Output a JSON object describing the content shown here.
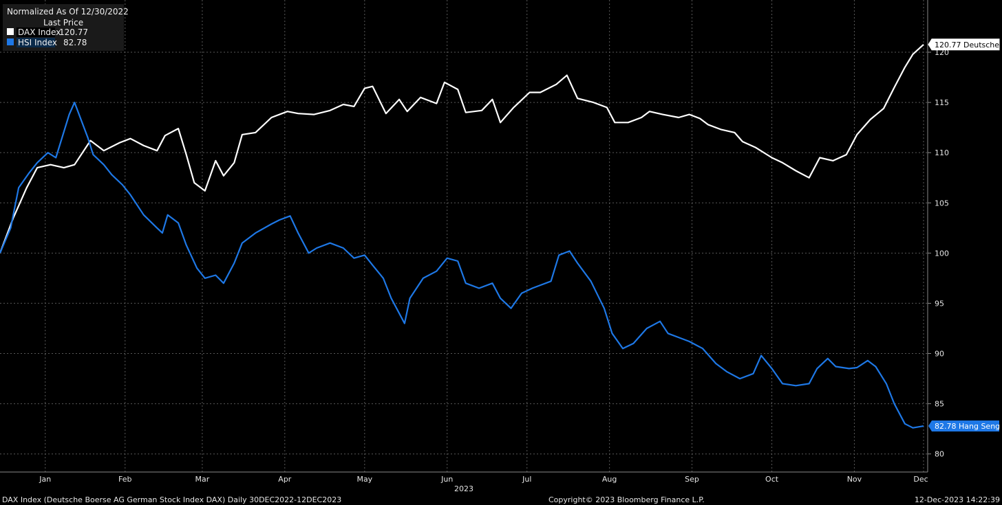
{
  "chart_data": {
    "type": "line",
    "header": "Normalized As Of 12/30/2022",
    "legend_title": "Last Price",
    "legend_placement": "top-left",
    "grid": true,
    "ylim": [
      78.2,
      125.2
    ],
    "y_ticks": [
      80,
      85,
      90,
      95,
      100,
      105,
      110,
      115,
      120
    ],
    "x_range": [
      "2022-12-30",
      "2023-12-12"
    ],
    "x_ticks": [
      {
        "label": "Jan",
        "date": "2023-01-16"
      },
      {
        "label": "Feb",
        "date": "2023-02-15"
      },
      {
        "label": "Mar",
        "date": "2023-03-16"
      },
      {
        "label": "Apr",
        "date": "2023-04-16"
      },
      {
        "label": "May",
        "date": "2023-05-16"
      },
      {
        "label": "Jun",
        "date": "2023-06-16"
      },
      {
        "label": "Jul",
        "date": "2023-07-16"
      },
      {
        "label": "Aug",
        "date": "2023-08-16"
      },
      {
        "label": "Sep",
        "date": "2023-09-16"
      },
      {
        "label": "Oct",
        "date": "2023-10-16"
      },
      {
        "label": "Nov",
        "date": "2023-11-16"
      },
      {
        "label": "Dec",
        "date": "2023-12-12"
      }
    ],
    "year_label": "2023",
    "series": [
      {
        "name": "DAX Index",
        "legend_value": "120.77",
        "end_label": "120.77 Deutsche",
        "color": "#ffffff",
        "points": [
          [
            "2022-12-30",
            100.0
          ],
          [
            "2023-01-04",
            103.5
          ],
          [
            "2023-01-09",
            106.5
          ],
          [
            "2023-01-13",
            108.5
          ],
          [
            "2023-01-18",
            108.8
          ],
          [
            "2023-01-23",
            108.5
          ],
          [
            "2023-01-27",
            108.8
          ],
          [
            "2023-02-02",
            111.2
          ],
          [
            "2023-02-07",
            110.2
          ],
          [
            "2023-02-13",
            111.0
          ],
          [
            "2023-02-17",
            111.4
          ],
          [
            "2023-02-22",
            110.7
          ],
          [
            "2023-02-27",
            110.2
          ],
          [
            "2023-03-02",
            111.7
          ],
          [
            "2023-03-07",
            112.4
          ],
          [
            "2023-03-10",
            109.8
          ],
          [
            "2023-03-13",
            107.0
          ],
          [
            "2023-03-17",
            106.2
          ],
          [
            "2023-03-21",
            109.2
          ],
          [
            "2023-03-24",
            107.7
          ],
          [
            "2023-03-28",
            109.0
          ],
          [
            "2023-03-31",
            111.8
          ],
          [
            "2023-04-05",
            112.0
          ],
          [
            "2023-04-11",
            113.5
          ],
          [
            "2023-04-17",
            114.1
          ],
          [
            "2023-04-21",
            113.9
          ],
          [
            "2023-04-27",
            113.8
          ],
          [
            "2023-05-03",
            114.2
          ],
          [
            "2023-05-08",
            114.8
          ],
          [
            "2023-05-12",
            114.6
          ],
          [
            "2023-05-16",
            116.4
          ],
          [
            "2023-05-19",
            116.6
          ],
          [
            "2023-05-24",
            113.9
          ],
          [
            "2023-05-29",
            115.3
          ],
          [
            "2023-06-01",
            114.1
          ],
          [
            "2023-06-06",
            115.5
          ],
          [
            "2023-06-12",
            114.9
          ],
          [
            "2023-06-15",
            117.0
          ],
          [
            "2023-06-20",
            116.3
          ],
          [
            "2023-06-23",
            114.0
          ],
          [
            "2023-06-29",
            114.2
          ],
          [
            "2023-07-03",
            115.3
          ],
          [
            "2023-07-06",
            113.0
          ],
          [
            "2023-07-11",
            114.5
          ],
          [
            "2023-07-17",
            116.0
          ],
          [
            "2023-07-21",
            116.0
          ],
          [
            "2023-07-27",
            116.8
          ],
          [
            "2023-07-31",
            117.7
          ],
          [
            "2023-08-04",
            115.4
          ],
          [
            "2023-08-10",
            115.0
          ],
          [
            "2023-08-15",
            114.5
          ],
          [
            "2023-08-18",
            113.0
          ],
          [
            "2023-08-23",
            113.0
          ],
          [
            "2023-08-28",
            113.5
          ],
          [
            "2023-08-31",
            114.1
          ],
          [
            "2023-09-05",
            113.8
          ],
          [
            "2023-09-11",
            113.5
          ],
          [
            "2023-09-15",
            113.8
          ],
          [
            "2023-09-19",
            113.4
          ],
          [
            "2023-09-22",
            112.8
          ],
          [
            "2023-09-27",
            112.3
          ],
          [
            "2023-10-02",
            112.0
          ],
          [
            "2023-10-05",
            111.1
          ],
          [
            "2023-10-10",
            110.5
          ],
          [
            "2023-10-16",
            109.5
          ],
          [
            "2023-10-20",
            109.0
          ],
          [
            "2023-10-25",
            108.2
          ],
          [
            "2023-10-30",
            107.5
          ],
          [
            "2023-11-03",
            109.5
          ],
          [
            "2023-11-08",
            109.2
          ],
          [
            "2023-11-13",
            109.8
          ],
          [
            "2023-11-17",
            111.8
          ],
          [
            "2023-11-22",
            113.3
          ],
          [
            "2023-11-27",
            114.4
          ],
          [
            "2023-12-01",
            116.5
          ],
          [
            "2023-12-05",
            118.5
          ],
          [
            "2023-12-08",
            119.8
          ],
          [
            "2023-12-12",
            120.77
          ]
        ]
      },
      {
        "name": "HSI Index",
        "legend_value": "82.78",
        "end_label": "82.78 Hang Seng",
        "color": "#1e78e6",
        "points": [
          [
            "2022-12-30",
            100.0
          ],
          [
            "2023-01-03",
            102.5
          ],
          [
            "2023-01-06",
            106.5
          ],
          [
            "2023-01-10",
            108.0
          ],
          [
            "2023-01-13",
            109.0
          ],
          [
            "2023-01-17",
            110.0
          ],
          [
            "2023-01-20",
            109.5
          ],
          [
            "2023-01-25",
            113.8
          ],
          [
            "2023-01-27",
            115.0
          ],
          [
            "2023-02-01",
            111.5
          ],
          [
            "2023-02-03",
            109.8
          ],
          [
            "2023-02-07",
            108.8
          ],
          [
            "2023-02-10",
            107.8
          ],
          [
            "2023-02-14",
            106.8
          ],
          [
            "2023-02-17",
            105.8
          ],
          [
            "2023-02-22",
            103.8
          ],
          [
            "2023-02-27",
            102.5
          ],
          [
            "2023-03-01",
            102.0
          ],
          [
            "2023-03-03",
            103.8
          ],
          [
            "2023-03-07",
            103.0
          ],
          [
            "2023-03-10",
            100.8
          ],
          [
            "2023-03-14",
            98.5
          ],
          [
            "2023-03-17",
            97.5
          ],
          [
            "2023-03-21",
            97.8
          ],
          [
            "2023-03-24",
            97.0
          ],
          [
            "2023-03-28",
            99.0
          ],
          [
            "2023-03-31",
            101.0
          ],
          [
            "2023-04-05",
            102.0
          ],
          [
            "2023-04-11",
            102.9
          ],
          [
            "2023-04-14",
            103.3
          ],
          [
            "2023-04-18",
            103.7
          ],
          [
            "2023-04-21",
            102.0
          ],
          [
            "2023-04-25",
            100.0
          ],
          [
            "2023-04-28",
            100.5
          ],
          [
            "2023-05-03",
            101.0
          ],
          [
            "2023-05-08",
            100.5
          ],
          [
            "2023-05-12",
            99.5
          ],
          [
            "2023-05-16",
            99.8
          ],
          [
            "2023-05-19",
            98.8
          ],
          [
            "2023-05-23",
            97.5
          ],
          [
            "2023-05-26",
            95.5
          ],
          [
            "2023-05-31",
            93.0
          ],
          [
            "2023-06-02",
            95.5
          ],
          [
            "2023-06-07",
            97.5
          ],
          [
            "2023-06-12",
            98.2
          ],
          [
            "2023-06-16",
            99.5
          ],
          [
            "2023-06-20",
            99.2
          ],
          [
            "2023-06-23",
            97.0
          ],
          [
            "2023-06-28",
            96.5
          ],
          [
            "2023-07-03",
            97.0
          ],
          [
            "2023-07-06",
            95.5
          ],
          [
            "2023-07-10",
            94.5
          ],
          [
            "2023-07-14",
            96.0
          ],
          [
            "2023-07-18",
            96.5
          ],
          [
            "2023-07-21",
            96.8
          ],
          [
            "2023-07-25",
            97.2
          ],
          [
            "2023-07-28",
            99.8
          ],
          [
            "2023-08-01",
            100.2
          ],
          [
            "2023-08-04",
            99.0
          ],
          [
            "2023-08-09",
            97.2
          ],
          [
            "2023-08-14",
            94.5
          ],
          [
            "2023-08-17",
            92.0
          ],
          [
            "2023-08-21",
            90.5
          ],
          [
            "2023-08-25",
            91.0
          ],
          [
            "2023-08-30",
            92.5
          ],
          [
            "2023-09-04",
            93.2
          ],
          [
            "2023-09-07",
            92.0
          ],
          [
            "2023-09-12",
            91.5
          ],
          [
            "2023-09-15",
            91.2
          ],
          [
            "2023-09-20",
            90.5
          ],
          [
            "2023-09-25",
            89.0
          ],
          [
            "2023-09-29",
            88.2
          ],
          [
            "2023-10-04",
            87.5
          ],
          [
            "2023-10-09",
            88.0
          ],
          [
            "2023-10-12",
            89.8
          ],
          [
            "2023-10-16",
            88.5
          ],
          [
            "2023-10-20",
            87.0
          ],
          [
            "2023-10-25",
            86.8
          ],
          [
            "2023-10-30",
            87.0
          ],
          [
            "2023-11-02",
            88.5
          ],
          [
            "2023-11-06",
            89.5
          ],
          [
            "2023-11-09",
            88.7
          ],
          [
            "2023-11-14",
            88.5
          ],
          [
            "2023-11-17",
            88.6
          ],
          [
            "2023-11-21",
            89.3
          ],
          [
            "2023-11-24",
            88.7
          ],
          [
            "2023-11-28",
            87.0
          ],
          [
            "2023-12-01",
            85.0
          ],
          [
            "2023-12-05",
            83.0
          ],
          [
            "2023-12-08",
            82.6
          ],
          [
            "2023-12-12",
            82.78
          ]
        ]
      }
    ]
  },
  "footer": {
    "left": "DAX Index (Deutsche Boerse AG German Stock Index DAX)  Daily 30DEC2022-12DEC2023",
    "center": "Copyright© 2023 Bloomberg Finance L.P.",
    "right": "12-Dec-2023 14:22:39"
  },
  "colors": {
    "background": "#000000",
    "grid": "#5a5a5a",
    "dax": "#ffffff",
    "hsi": "#1e78e6",
    "legend_box": "#1a1a1a"
  }
}
